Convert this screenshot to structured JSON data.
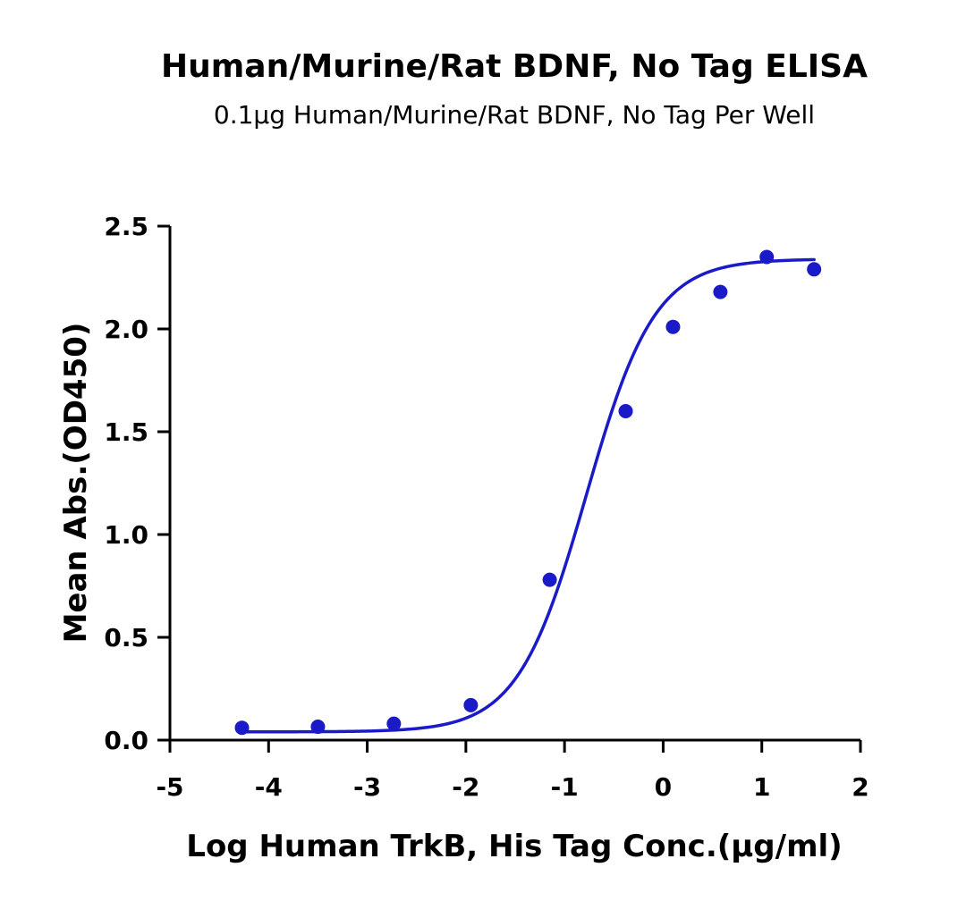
{
  "chart_data": {
    "type": "scatter",
    "title": "Human/Murine/Rat BDNF, No Tag ELISA",
    "subtitle": "0.1µg Human/Murine/Rat BDNF, No Tag Per Well",
    "xlabel": "Log Human TrkB, His Tag Conc.(µg/ml)",
    "ylabel": "Mean Abs.(OD450)",
    "xlim": [
      -5,
      2
    ],
    "ylim": [
      0,
      2.5
    ],
    "x_ticks": [
      -5,
      -4,
      -3,
      -2,
      -1,
      0,
      1,
      2
    ],
    "x_tick_labels": [
      "-5",
      "-4",
      "-3",
      "-2",
      "-1",
      "0",
      "1",
      "2"
    ],
    "y_ticks": [
      0,
      0.5,
      1.0,
      1.5,
      2.0,
      2.5
    ],
    "y_tick_labels": [
      "0.0",
      "0.5",
      "1.0",
      "1.5",
      "2.0",
      "2.5"
    ],
    "grid": false,
    "color": "#1a1ac8",
    "series": [
      {
        "points": [
          {
            "x": -4.27,
            "y": 0.06
          },
          {
            "x": -3.5,
            "y": 0.065
          },
          {
            "x": -2.73,
            "y": 0.08
          },
          {
            "x": -1.95,
            "y": 0.17
          },
          {
            "x": -1.15,
            "y": 0.78
          },
          {
            "x": -0.38,
            "y": 1.6
          },
          {
            "x": 0.1,
            "y": 2.01
          },
          {
            "x": 0.58,
            "y": 2.18
          },
          {
            "x": 1.05,
            "y": 2.35
          },
          {
            "x": 1.53,
            "y": 2.29
          }
        ],
        "fit": {
          "model": "4PL",
          "bottom": 0.04,
          "top": 2.34,
          "log_ec50": -0.78,
          "hill": 1.25,
          "x_range": [
            -4.27,
            1.53
          ]
        }
      }
    ]
  }
}
